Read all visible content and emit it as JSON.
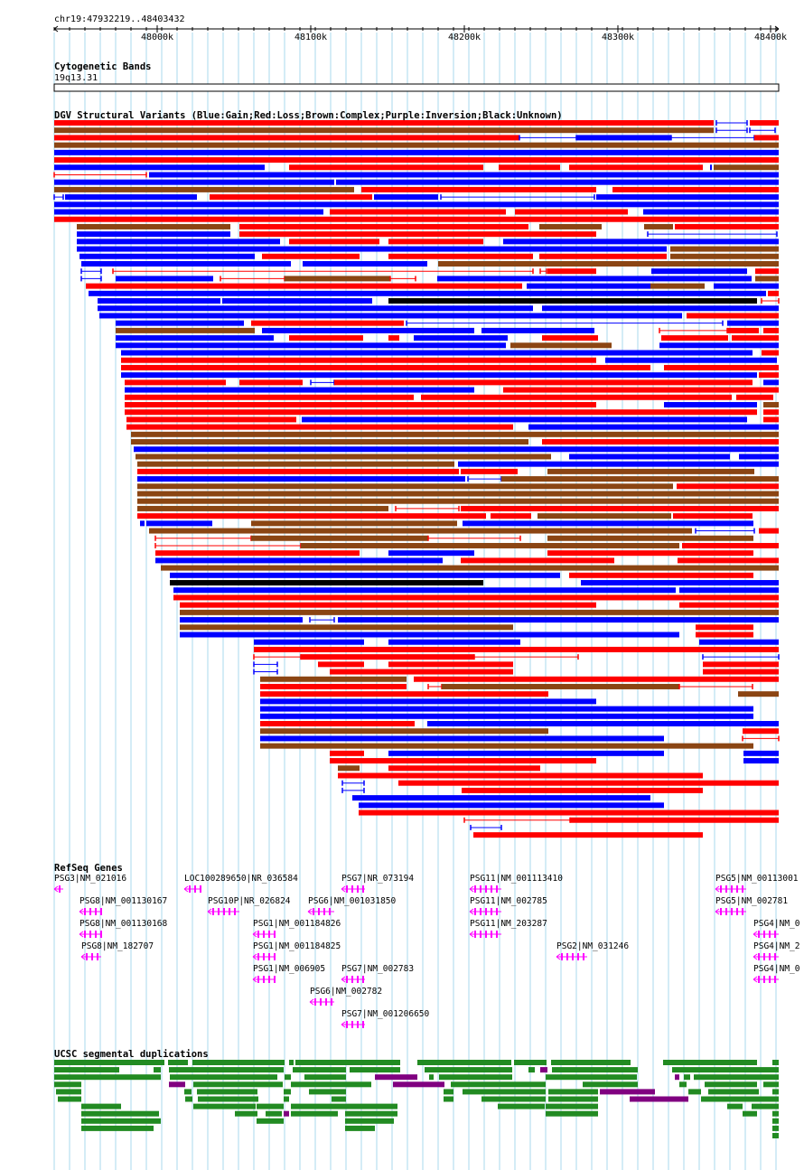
{
  "header": {
    "location": "chr19:47932219..48403432",
    "ruler_ticks": [
      "48000k",
      "48100k",
      "48200k",
      "48300k",
      "48400k"
    ]
  },
  "tracks": {
    "cyto": {
      "title": "Cytogenetic Bands",
      "band": "19q13.31"
    },
    "dgv": {
      "title": "DGV Structural Variants (Blue:Gain;Red:Loss;Brown:Complex;Purple:Inversion;Black:Unknown)",
      "colors": {
        "gain": "#0000ff",
        "loss": "#ff0000",
        "complex": "#8b4513",
        "inversion": "#800080",
        "unknown": "#000000"
      }
    },
    "refseq": {
      "title": "RefSeq Genes",
      "color": "#ff00ff",
      "genes": [
        "PSG3|NM_021016",
        "LOC100289650|NR_036584",
        "PSG7|NR_073194",
        "PSG11|NM_001113410",
        "PSG5|NM_00113001",
        "PSG8|NM_001130167",
        "PSG10P|NR_026824",
        "PSG6|NM_001031850",
        "PSG11|NM_002785",
        "PSG5|NM_002781",
        "PSG8|NM_001130168",
        "PSG1|NM_001184826",
        "PSG11|NM_203287",
        "PSG4|NM_0",
        "PSG8|NM_182707",
        "PSG1|NM_001184825",
        "PSG2|NM_031246",
        "PSG4|NM_2",
        "PSG1|NM_006905",
        "PSG7|NM_002783",
        "PSG4|NM_0",
        "PSG6|NM_002782",
        "PSG7|NM_001206650"
      ]
    },
    "segdup": {
      "title": "UCSC segmental duplications",
      "colors": {
        "main": "#228b22",
        "alt": "#800080"
      }
    }
  }
}
